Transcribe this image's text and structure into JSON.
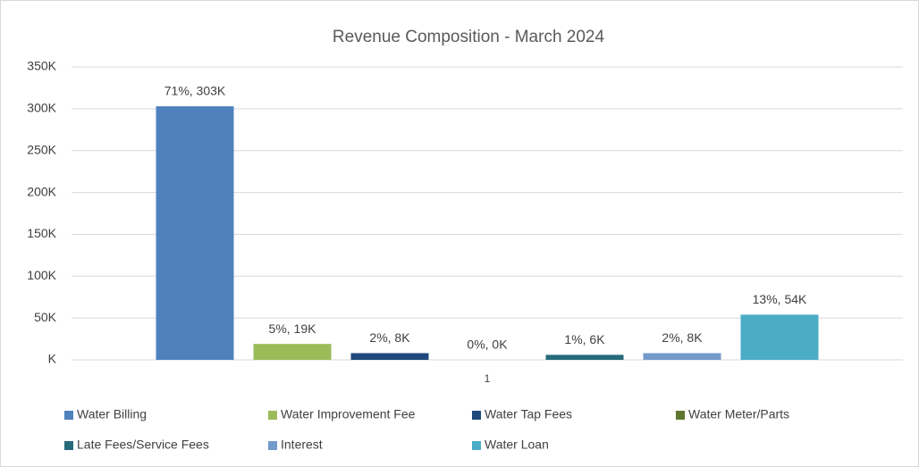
{
  "chart_data": {
    "type": "bar",
    "title": "Revenue Composition - March 2024",
    "categories": [
      "1"
    ],
    "series": [
      {
        "name": "Water Billing",
        "color": "#4f81bd",
        "values": [
          303000
        ],
        "value_labels": [
          "71%, 303K"
        ]
      },
      {
        "name": "Water Improvement Fee",
        "color": "#9bbb59",
        "values": [
          19000
        ],
        "value_labels": [
          "5%, 19K"
        ]
      },
      {
        "name": "Water Tap Fees",
        "color": "#1f497d",
        "values": [
          8000
        ],
        "value_labels": [
          "2%, 8K"
        ]
      },
      {
        "name": "Water Meter/Parts",
        "color": "#5f7530",
        "values": [
          0
        ],
        "value_labels": [
          "0%, 0K"
        ]
      },
      {
        "name": "Late Fees/Service Fees",
        "color": "#276a7c",
        "values": [
          6000
        ],
        "value_labels": [
          "1%, 6K"
        ]
      },
      {
        "name": "Interest",
        "color": "#729aca",
        "values": [
          8000
        ],
        "value_labels": [
          "2%, 8K"
        ]
      },
      {
        "name": "Water Loan",
        "color": "#4bacc6",
        "values": [
          54000
        ],
        "value_labels": [
          "13%, 54K"
        ]
      }
    ],
    "ylim": [
      0,
      350000
    ],
    "yticks": [
      {
        "value": 0,
        "label": "K"
      },
      {
        "value": 50000,
        "label": "50K"
      },
      {
        "value": 100000,
        "label": "100K"
      },
      {
        "value": 150000,
        "label": "150K"
      },
      {
        "value": 200000,
        "label": "200K"
      },
      {
        "value": 250000,
        "label": "250K"
      },
      {
        "value": 300000,
        "label": "300K"
      },
      {
        "value": 350000,
        "label": "350K"
      }
    ],
    "grid": true,
    "legend": "bottom"
  }
}
